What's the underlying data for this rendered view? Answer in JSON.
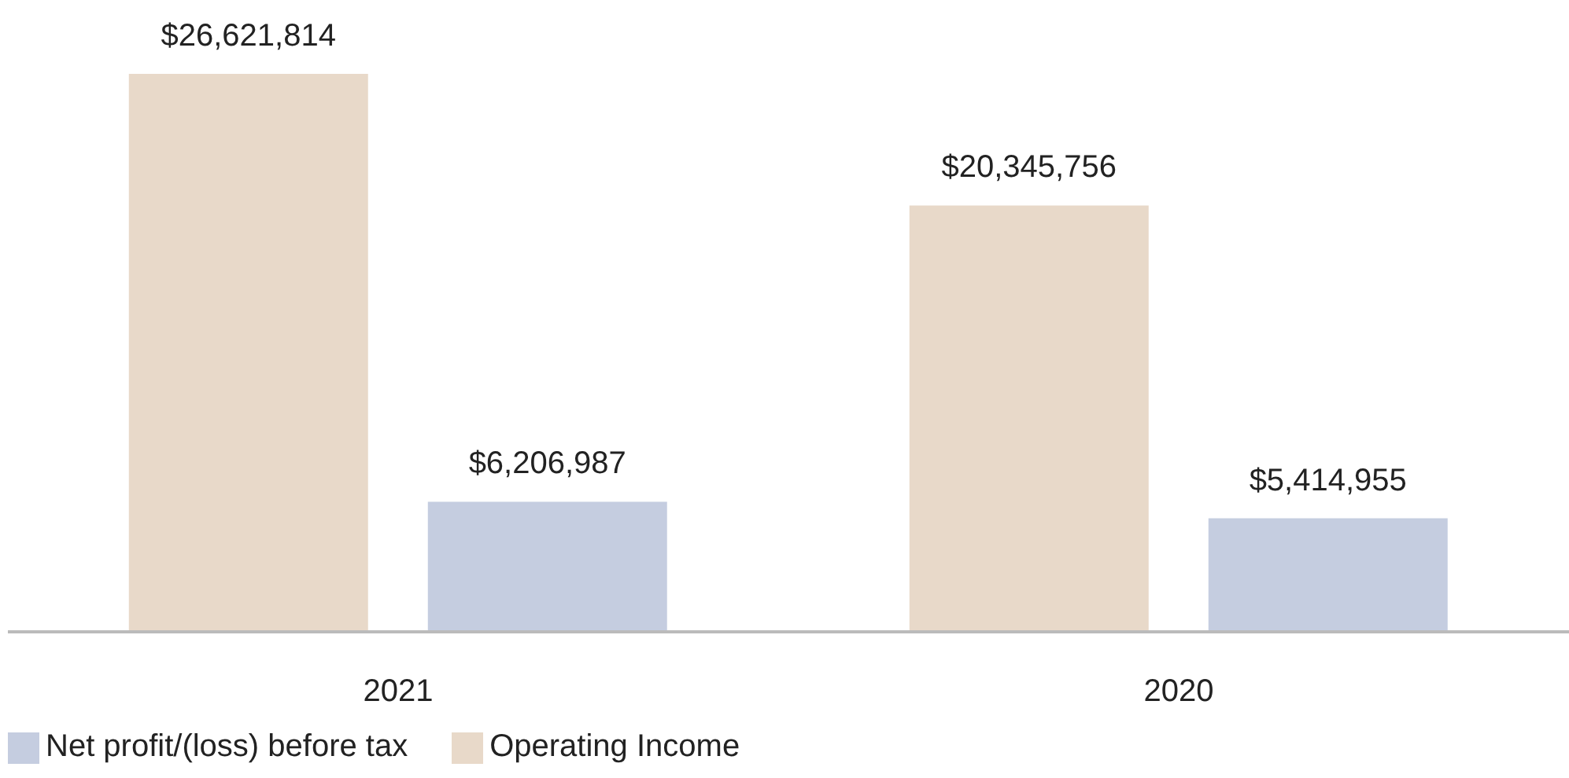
{
  "chart_data": {
    "type": "bar",
    "categories": [
      "2021",
      "2020"
    ],
    "series": [
      {
        "name": "Operating Income",
        "color": "#e8d9c9",
        "values": [
          26621814,
          20345756
        ],
        "value_labels": [
          "$26,621,814",
          "$20,345,756"
        ]
      },
      {
        "name": "Net profit/(loss) before tax",
        "color": "#c5cde0",
        "values": [
          6206987,
          5414955
        ],
        "value_labels": [
          "$6,206,987",
          "$5,414,955"
        ]
      }
    ],
    "legend": "bottom left",
    "grid": false,
    "tick_labels": "x"
  }
}
